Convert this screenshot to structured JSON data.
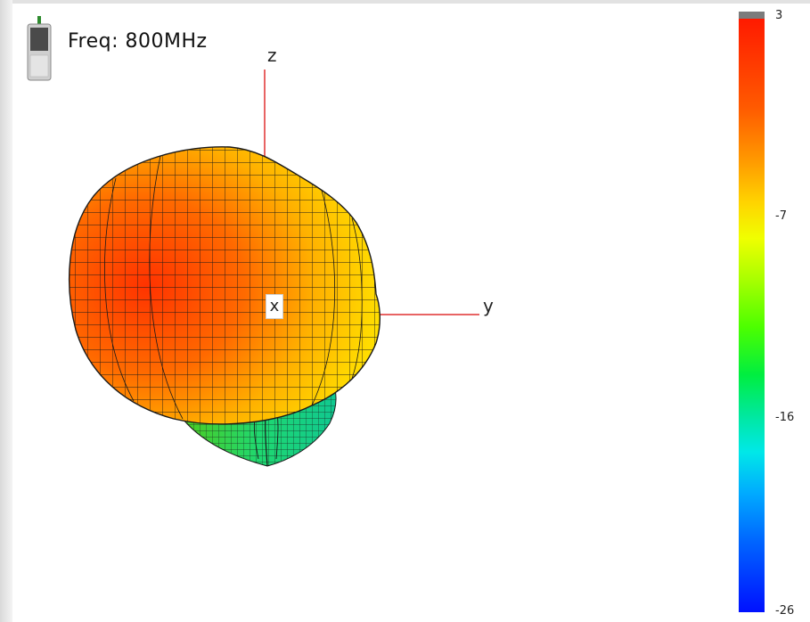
{
  "frequency": {
    "label": "Freq: 800MHz"
  },
  "icons": {
    "device": "phone-device-icon"
  },
  "axes": {
    "x": "x",
    "y": "y",
    "z": "z",
    "color": "#e03030"
  },
  "colorbar": {
    "ticks": [
      {
        "value": 3,
        "label": "3"
      },
      {
        "value": -7,
        "label": "-7"
      },
      {
        "value": -16,
        "label": "-16"
      },
      {
        "value": -26,
        "label": "-26"
      }
    ],
    "range": [
      -26,
      3
    ],
    "colors": [
      "#ff1a00",
      "#ff9a00",
      "#f0ff00",
      "#4cff00",
      "#00e8e8",
      "#0010ff"
    ]
  }
}
